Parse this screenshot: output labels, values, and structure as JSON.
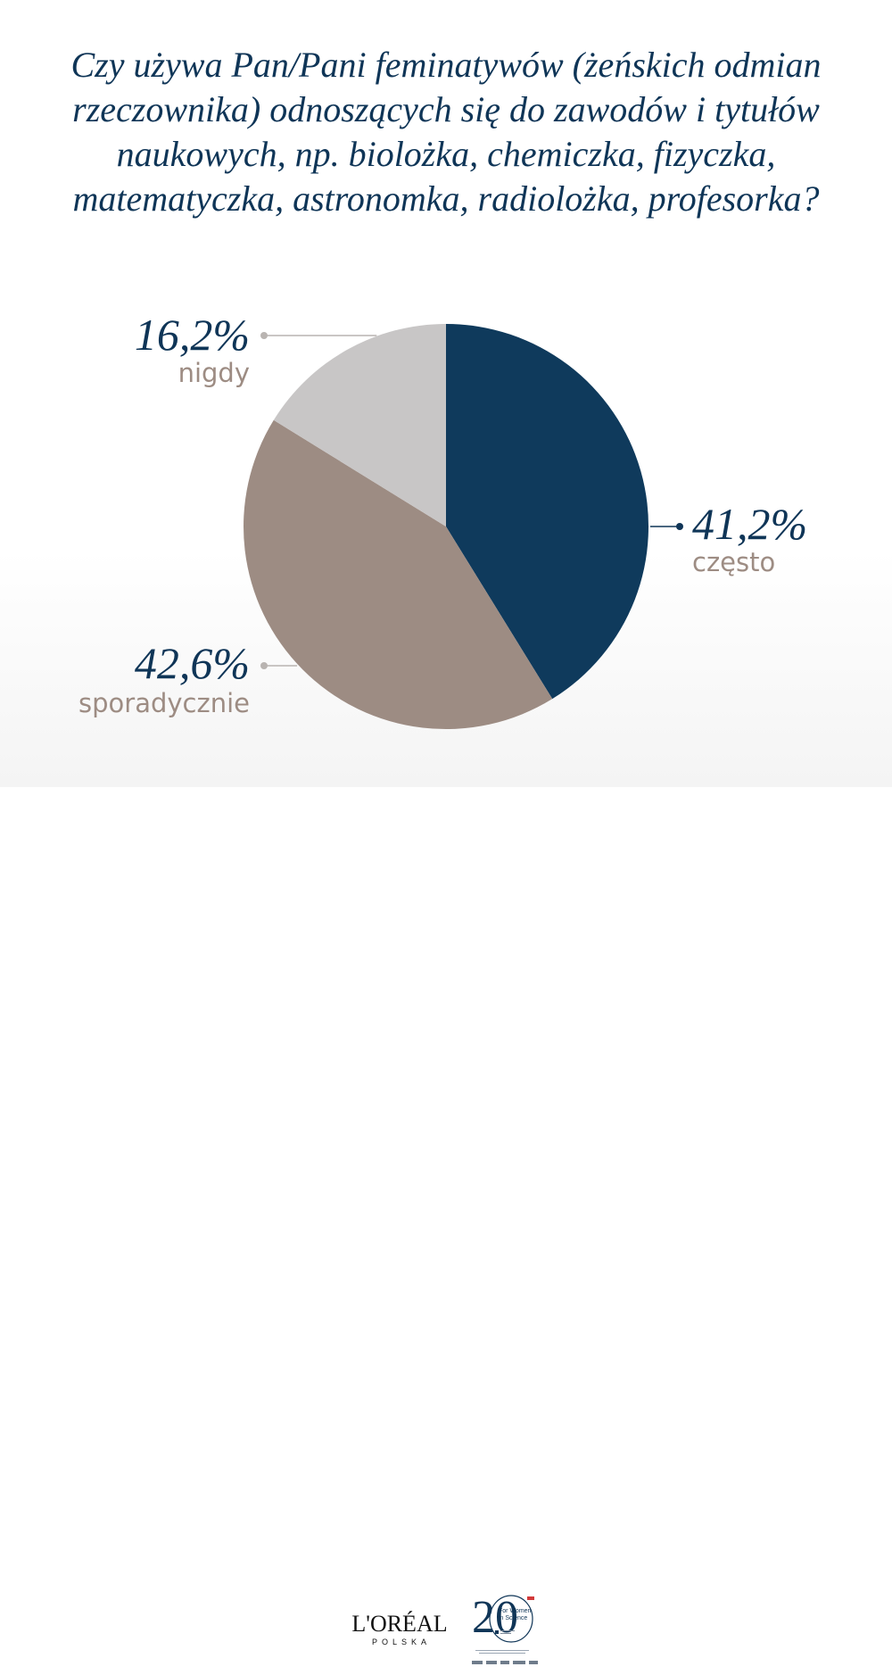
{
  "title": "Czy używa Pan/Pani feminatywów (żeńskich odmian rzeczownika) odnoszących się do zawodów i tytułów naukowych, np. biolożka, chemiczka, fizyczka, matematyczka, astronomka, radiolożka, profesorka?",
  "chart_data": {
    "type": "pie",
    "title": "Czy używa Pan/Pani feminatywów (żeńskich odmian rzeczownika) odnoszących się do zawodów i tytułów naukowych, np. biolożka, chemiczka, fizyczka, matematyczka, astronomka, radiolożka, profesorka?",
    "slices": [
      {
        "label": "często",
        "value": 41.2,
        "value_label": "41,2%",
        "color": "#0f3a5c"
      },
      {
        "label": "sporadycznie",
        "value": 42.6,
        "value_label": "42,6%",
        "color": "#9d8c83"
      },
      {
        "label": "nigdy",
        "value": 16.2,
        "value_label": "16,2%",
        "color": "#c8c6c6"
      }
    ],
    "start": "12 o'clock",
    "direction": "clockwise",
    "label_color": "#0f3557",
    "category_color": "#9d8c83"
  },
  "footer": {
    "brand": "L'ORÉAL",
    "brand_sub": "POLSKA",
    "program_number": "20",
    "program_name": "For Women in Science"
  }
}
